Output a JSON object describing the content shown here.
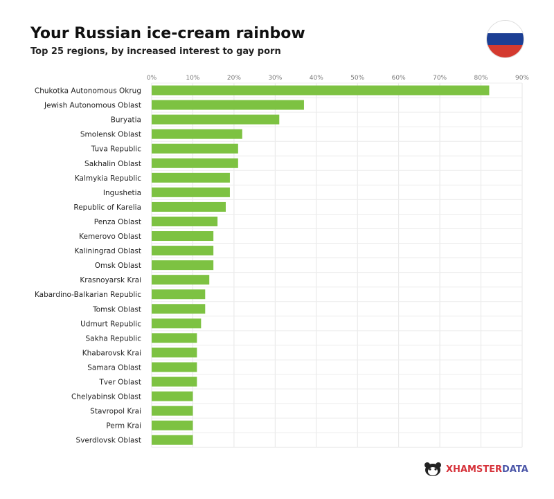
{
  "title": "Your Russian ice-cream rainbow",
  "subtitle": "Top 25 regions, by increased interest to gay porn",
  "flag_colors": [
    "#ffffff",
    "#1c3f94",
    "#d43a2f"
  ],
  "logo": {
    "part1": "XHAMSTER",
    "part2": "DATA",
    "color1": "#d6323a",
    "color2": "#4b56a8"
  },
  "chart_data": {
    "type": "bar",
    "orientation": "horizontal",
    "title": "Your Russian ice-cream rainbow",
    "subtitle": "Top 25 regions, by increased interest to gay porn",
    "xlim": [
      0,
      90
    ],
    "x_ticks": [
      "0%",
      "10%",
      "20%",
      "30%",
      "40%",
      "50%",
      "60%",
      "70%",
      "80%",
      "90%"
    ],
    "x_axis_position": "top",
    "grid": true,
    "bar_color": "#7dc242",
    "categories": [
      "Chukotka Autonomous Okrug",
      "Jewish Autonomous Oblast",
      "Buryatia",
      "Smolensk Oblast",
      "Tuva Republic",
      "Sakhalin Oblast",
      "Kalmykia Republic",
      "Ingushetia",
      "Republic of Karelia",
      "Penza Oblast",
      "Kemerovo Oblast",
      "Kaliningrad Oblast",
      "Omsk Oblast",
      "Krasnoyarsk Krai",
      "Kabardino-Balkarian Republic",
      "Tomsk Oblast",
      "Udmurt Republic",
      "Sakha Republic",
      "Khabarovsk Krai",
      "Samara Oblast",
      "Tver Oblast",
      "Chelyabinsk Oblast",
      "Stavropol Krai",
      "Perm Krai",
      "Sverdlovsk Oblast"
    ],
    "values": [
      82,
      37,
      31,
      22,
      21,
      21,
      19,
      19,
      18,
      16,
      15,
      15,
      15,
      14,
      13,
      13,
      12,
      11,
      11,
      11,
      11,
      10,
      10,
      10,
      10
    ]
  }
}
